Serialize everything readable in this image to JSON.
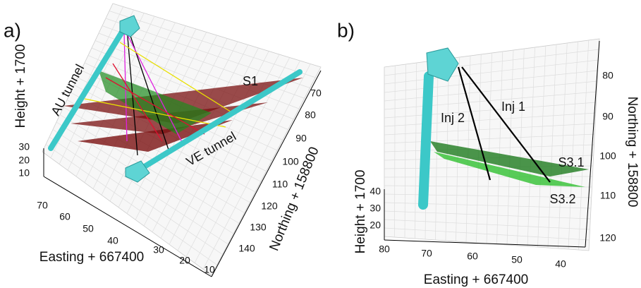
{
  "panels": [
    {
      "label": "a)",
      "axes": {
        "height": {
          "title": "Height + 1700",
          "ticks": [
            30,
            20,
            10
          ]
        },
        "easting": {
          "title": "Easting + 667400",
          "ticks": [
            70,
            60,
            50,
            40,
            30,
            20,
            10
          ]
        },
        "northing": {
          "title": "Northing + 158800",
          "ticks": [
            70,
            80,
            90,
            100,
            110,
            120,
            130,
            140
          ]
        }
      },
      "annotations": [
        "AU tunnel",
        "VE tunnel",
        "S1"
      ]
    },
    {
      "label": "b)",
      "axes": {
        "height": {
          "title": "Height + 1700",
          "ticks": [
            40,
            30,
            20
          ]
        },
        "easting": {
          "title": "Easting + 667400",
          "ticks": [
            80,
            70,
            60,
            50,
            40
          ]
        },
        "northing": {
          "title": "Northing + 158800",
          "ticks": [
            80,
            90,
            100,
            110,
            120
          ]
        }
      },
      "annotations": [
        "Inj 2",
        "Inj 1",
        "S3.1",
        "S3.2"
      ]
    }
  ]
}
